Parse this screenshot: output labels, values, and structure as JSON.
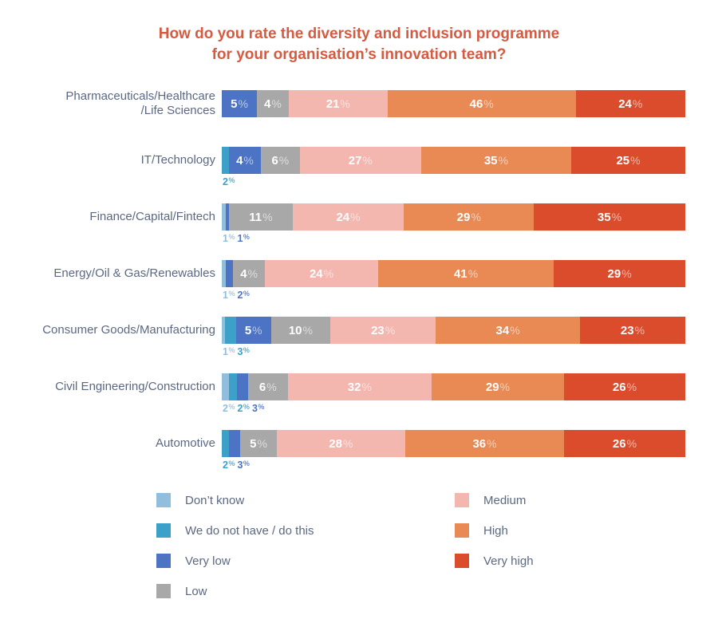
{
  "title": {
    "line1": "How do you rate the diversity and inclusion programme",
    "line2": "for your organisation’s innovation team?"
  },
  "percent_sign": "%",
  "colors": {
    "title": "#D35B42",
    "label_text": "#5B6882",
    "dont_know": "#92BEDD",
    "not_have": "#3DA0C9",
    "very_low": "#4C73C4",
    "low": "#A8A8A8",
    "medium": "#F3B7B0",
    "high": "#E98A54",
    "very_high": "#DB4C2C"
  },
  "legend": {
    "columns": [
      [
        {
          "key": "dont_know",
          "label": "Don’t know"
        },
        {
          "key": "not_have",
          "label": "We do not have / do this"
        },
        {
          "key": "very_low",
          "label": "Very low"
        },
        {
          "key": "low",
          "label": "Low"
        }
      ],
      [
        {
          "key": "medium",
          "label": "Medium"
        },
        {
          "key": "high",
          "label": "High"
        },
        {
          "key": "very_high",
          "label": "Very high"
        }
      ]
    ]
  },
  "chart_data": {
    "type": "bar",
    "orientation": "horizontal",
    "stacked": true,
    "unit": "percent",
    "title": "How do you rate the diversity and inclusion programme for your organisation’s innovation team?",
    "legend_position": "bottom",
    "grid": false,
    "inside_label_min_value": 4,
    "series_order": [
      "dont_know",
      "not_have",
      "very_low",
      "low",
      "medium",
      "high",
      "very_high"
    ],
    "series_labels": {
      "dont_know": "Don’t know",
      "not_have": "We do not have / do this",
      "very_low": "Very low",
      "low": "Low",
      "medium": "Medium",
      "high": "High",
      "very_high": "Very high"
    },
    "categories": [
      "Pharmaceuticals/Healthcare/Life Sciences",
      "IT/Technology",
      "Finance/Capital/Fintech",
      "Energy/Oil & Gas/Renewables",
      "Consumer Goods/Manufacturing",
      "Civil Engineering/Construction",
      "Automotive"
    ],
    "rows": [
      {
        "category_lines": [
          "Pharmaceuticals/Healthcare",
          "/Life Sciences"
        ],
        "segments": [
          {
            "series": "very_low",
            "value": 5
          },
          {
            "series": "low",
            "value": 4
          },
          {
            "series": "medium",
            "value": 21
          },
          {
            "series": "high",
            "value": 46
          },
          {
            "series": "very_high",
            "value": 24
          }
        ]
      },
      {
        "category_lines": [
          "IT/Technology"
        ],
        "segments": [
          {
            "series": "not_have",
            "value": 2
          },
          {
            "series": "very_low",
            "value": 4
          },
          {
            "series": "low",
            "value": 6
          },
          {
            "series": "medium",
            "value": 27
          },
          {
            "series": "high",
            "value": 35
          },
          {
            "series": "very_high",
            "value": 25
          }
        ]
      },
      {
        "category_lines": [
          "Finance/Capital/Fintech"
        ],
        "segments": [
          {
            "series": "dont_know",
            "value": 1
          },
          {
            "series": "very_low",
            "value": 1
          },
          {
            "series": "low",
            "value": 11
          },
          {
            "series": "medium",
            "value": 24
          },
          {
            "series": "high",
            "value": 29
          },
          {
            "series": "very_high",
            "value": 35
          }
        ]
      },
      {
        "category_lines": [
          "Energy/Oil & Gas/Renewables"
        ],
        "segments": [
          {
            "series": "dont_know",
            "value": 1
          },
          {
            "series": "very_low",
            "value": 2
          },
          {
            "series": "low",
            "value": 4
          },
          {
            "series": "medium",
            "value": 24
          },
          {
            "series": "high",
            "value": 41
          },
          {
            "series": "very_high",
            "value": 29
          }
        ]
      },
      {
        "category_lines": [
          "Consumer Goods/Manufacturing"
        ],
        "segments": [
          {
            "series": "dont_know",
            "value": 1
          },
          {
            "series": "not_have",
            "value": 3
          },
          {
            "series": "very_low",
            "value": 5
          },
          {
            "series": "low",
            "value": 10
          },
          {
            "series": "medium",
            "value": 23
          },
          {
            "series": "high",
            "value": 34
          },
          {
            "series": "very_high",
            "value": 23
          }
        ]
      },
      {
        "category_lines": [
          "Civil Engineering/Construction"
        ],
        "segments": [
          {
            "series": "dont_know",
            "value": 2
          },
          {
            "series": "not_have",
            "value": 2
          },
          {
            "series": "very_low",
            "value": 3
          },
          {
            "series": "low",
            "value": 6
          },
          {
            "series": "medium",
            "value": 32
          },
          {
            "series": "high",
            "value": 29
          },
          {
            "series": "very_high",
            "value": 26
          }
        ]
      },
      {
        "category_lines": [
          "Automotive"
        ],
        "segments": [
          {
            "series": "not_have",
            "value": 2
          },
          {
            "series": "very_low",
            "value": 3
          },
          {
            "series": "low",
            "value": 5
          },
          {
            "series": "medium",
            "value": 28
          },
          {
            "series": "high",
            "value": 36
          },
          {
            "series": "very_high",
            "value": 26
          }
        ]
      }
    ]
  }
}
